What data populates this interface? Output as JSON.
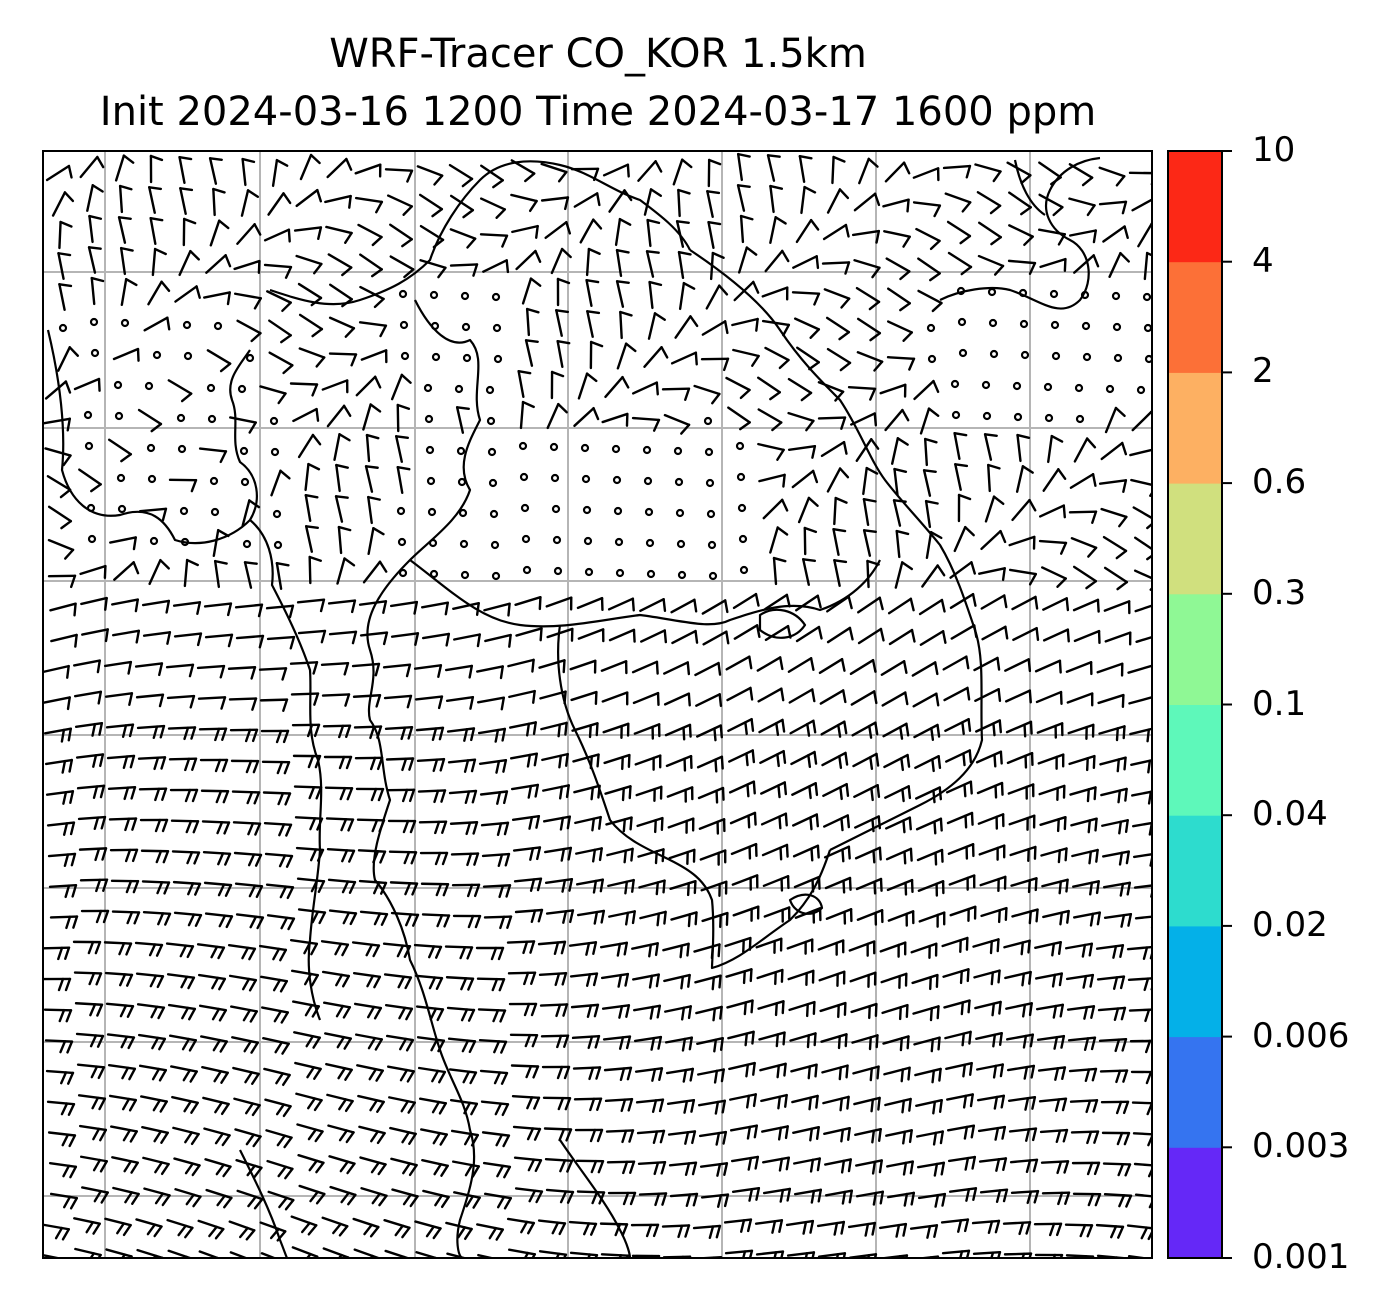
{
  "title": {
    "line1": "WRF-Tracer CO_KOR 1.5km",
    "line2": "Init 2024-03-16 1200 Time 2024-03-17 1600 ppm"
  },
  "colorbar": {
    "levels": [
      "0.001",
      "0.003",
      "0.006",
      "0.02",
      "0.04",
      "0.1",
      "0.3",
      "0.6",
      "2",
      "4",
      "10"
    ],
    "colors": [
      "#6528f7",
      "#3574f0",
      "#04b0e8",
      "#2ddcce",
      "#5ef8ba",
      "#8ff895",
      "#d0e07e",
      "#fdb062",
      "#fc7037",
      "#fc2816"
    ]
  },
  "map": {
    "background": "#ffffff",
    "gridline_color": "#b5b5b5",
    "coastline_color": "#000000",
    "gridlines": true,
    "field": "wind barbs",
    "calm_regions": [
      "north-central land",
      "northern interior",
      "north-east land"
    ]
  }
}
